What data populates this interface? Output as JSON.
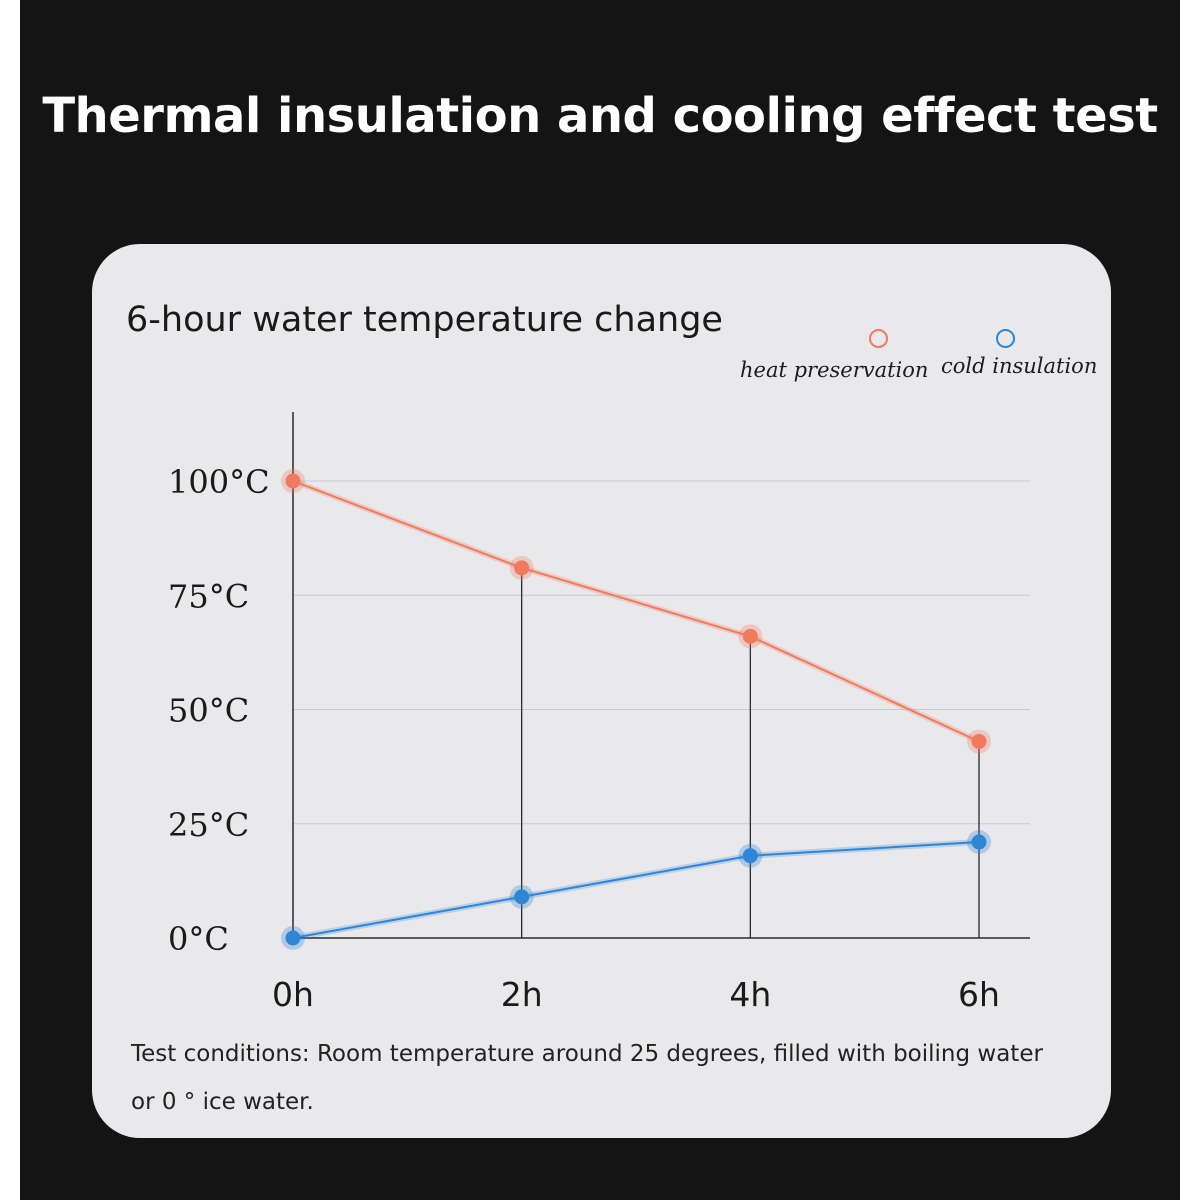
{
  "page": {
    "title": "Thermal insulation and cooling effect test",
    "footnote": "Test conditions: Room temperature around 25 degrees, filled with boiling water or 0 ° ice water.",
    "colors": {
      "background": "#141414",
      "card": "#e9e9eb",
      "heat": "#f07a5e",
      "cold": "#2f86d6"
    }
  },
  "chart_data": {
    "type": "line",
    "title": "6-hour water temperature change",
    "xlabel": "",
    "ylabel": "",
    "categories": [
      "0h",
      "2h",
      "4h",
      "6h"
    ],
    "x": [
      0,
      2,
      4,
      6
    ],
    "yticks": [
      0,
      25,
      50,
      75,
      100
    ],
    "ytick_labels": [
      "0°C",
      "25°C",
      "50°C",
      "75°C",
      "100°C"
    ],
    "ylim": [
      0,
      100
    ],
    "grid": "horizontal",
    "legend_position": "top-right",
    "series": [
      {
        "name": "heat preservation",
        "values": [
          100,
          81,
          66,
          43
        ],
        "color": "#f07a5e"
      },
      {
        "name": "cold insulation",
        "values": [
          0,
          9,
          18,
          21
        ],
        "color": "#2f86d6"
      }
    ]
  }
}
